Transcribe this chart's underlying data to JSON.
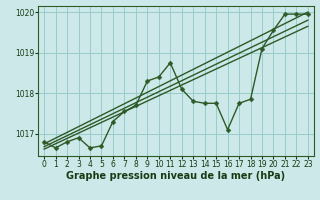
{
  "xlabel": "Graphe pression niveau de la mer (hPa)",
  "bg_color": "#cce8e8",
  "grid_color": "#99cccc",
  "line_color": "#2d5a27",
  "marker_color": "#2d5a27",
  "x_values": [
    0,
    1,
    2,
    3,
    4,
    5,
    6,
    7,
    8,
    9,
    10,
    11,
    12,
    13,
    14,
    15,
    16,
    17,
    18,
    19,
    20,
    21,
    22,
    23
  ],
  "line1": [
    1016.8,
    1016.65,
    1016.8,
    1016.9,
    1016.65,
    1016.7,
    1017.3,
    1017.55,
    1017.7,
    1018.3,
    1018.4,
    1018.75,
    1018.1,
    1017.8,
    1017.75,
    1017.75,
    1017.1,
    1017.75,
    1017.85,
    1019.1,
    1019.55,
    1019.95,
    1019.95,
    1019.95
  ],
  "trend1": [
    1016.75,
    1020.0
  ],
  "trend2": [
    1016.68,
    1019.8
  ],
  "trend3": [
    1016.62,
    1019.65
  ],
  "ylim": [
    1016.45,
    1020.15
  ],
  "yticks": [
    1017,
    1018,
    1019,
    1020
  ],
  "xticks": [
    0,
    1,
    2,
    3,
    4,
    5,
    6,
    7,
    8,
    9,
    10,
    11,
    12,
    13,
    14,
    15,
    16,
    17,
    18,
    19,
    20,
    21,
    22,
    23
  ],
  "tick_fontsize": 5.5,
  "xlabel_fontsize": 7,
  "line_width": 1.0,
  "marker_size": 2.5
}
